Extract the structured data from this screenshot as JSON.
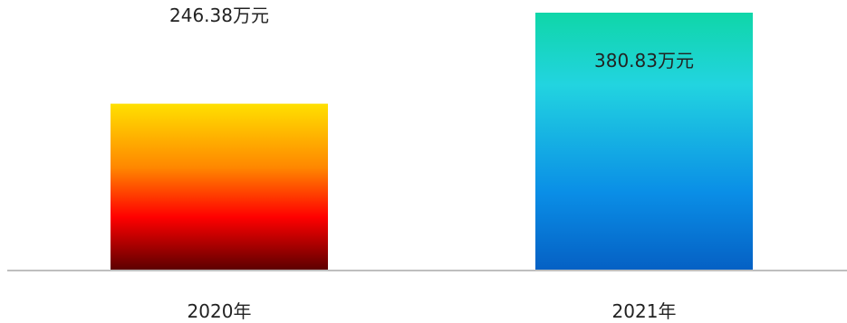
{
  "chart_data": {
    "type": "bar",
    "categories": [
      "2020年",
      "2021年"
    ],
    "values": [
      246.38,
      380.83
    ],
    "data_labels": [
      "246.38万元",
      "380.83万元"
    ],
    "ylim": [
      0,
      380.83
    ],
    "grid": false,
    "legend": "none",
    "colors": {
      "2020年": {
        "top": "#ffe000",
        "middle": "#ff8800",
        "lower": "#ff0000",
        "bottom": "#5a0000"
      },
      "2021年": {
        "top": "#0fd6a8",
        "upper": "#22d4e0",
        "middle": "#0aa0e6",
        "bottom": "#0560c4"
      }
    },
    "axis_color": "#bfbfbf"
  }
}
